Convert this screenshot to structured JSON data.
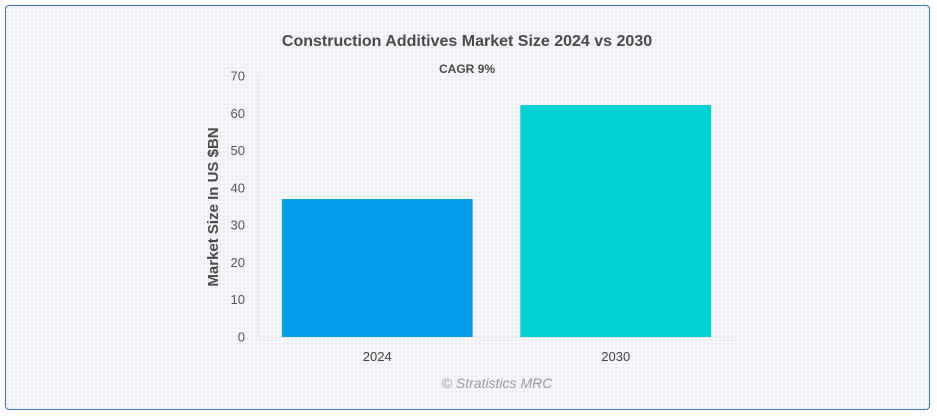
{
  "chart_data": {
    "type": "bar",
    "title": "Construction Additives Market Size 2024 vs 2030",
    "subtitle": "CAGR 9%",
    "categories": [
      "2024",
      "2030"
    ],
    "values": [
      37,
      62.2
    ],
    "colors": [
      "#039eea",
      "#00d2d3"
    ],
    "xlabel": "",
    "ylabel": "Market Size In US $BN",
    "ylim": [
      0,
      70
    ],
    "yticks": [
      "0",
      "10",
      "20",
      "30",
      "40",
      "50",
      "60",
      "70"
    ],
    "grid": false,
    "legend": "none"
  },
  "credit": "© Stratistics MRC"
}
